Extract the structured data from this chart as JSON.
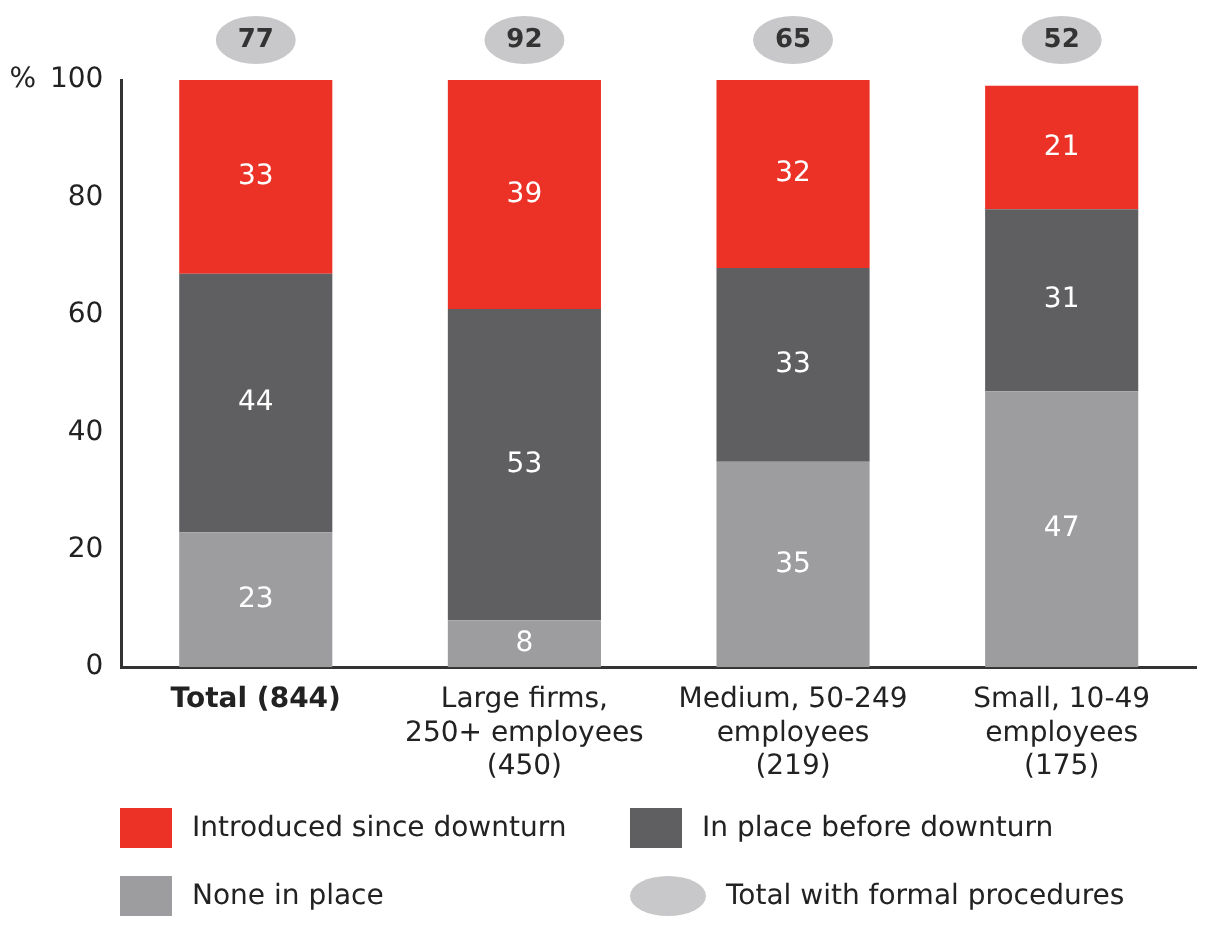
{
  "chart_data": {
    "type": "bar",
    "stacked": true,
    "ylabel": "%",
    "categories": [
      "Total (844)",
      "Large firms,\n250+ employees\n(450)",
      "Medium, 50-249\nemployees\n(219)",
      "Small, 10-49\nemployees\n(175)"
    ],
    "series": [
      {
        "name": "None in place",
        "color": "#9d9d9f",
        "values": [
          23,
          8,
          35,
          47
        ]
      },
      {
        "name": "In place before downturn",
        "color": "#5f5f61",
        "values": [
          44,
          53,
          33,
          31
        ]
      },
      {
        "name": "Introduced since downturn",
        "color": "#ec3126",
        "values": [
          33,
          39,
          32,
          21
        ]
      }
    ],
    "annotations": [
      "Total with formal procedures",
      "77",
      "92",
      "65",
      "52"
    ],
    "ylim": [
      0,
      100
    ],
    "yticks": [
      0,
      20,
      40,
      60,
      80,
      100
    ],
    "grid": false,
    "data_labels": true,
    "legend": "bottom"
  }
}
